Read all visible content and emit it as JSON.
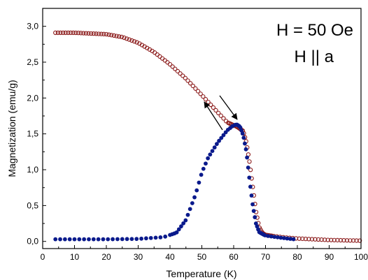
{
  "chart_data": {
    "type": "scatter",
    "xlabel": "Temperature (K)",
    "ylabel": "Magnetization (emu/g)",
    "xlim": [
      0,
      100
    ],
    "ylim": [
      -0.1,
      3.25
    ],
    "x_ticks": [
      0,
      10,
      20,
      30,
      40,
      50,
      60,
      70,
      80,
      90,
      100
    ],
    "x_tick_labels": [
      "0",
      "10",
      "20",
      "30",
      "40",
      "50",
      "60",
      "70",
      "80",
      "90",
      "100"
    ],
    "y_ticks": [
      0,
      0.5,
      1.0,
      1.5,
      2.0,
      2.5,
      3.0
    ],
    "y_tick_labels": [
      "0,0",
      "0,5",
      "1,0",
      "1,5",
      "2,0",
      "2,5",
      "3,0"
    ],
    "grid": false,
    "annotations": [
      "H = 50 Oe",
      "H || a"
    ],
    "colors": {
      "open_series": "#8B1A1A",
      "filled_series": "#0A1A8C"
    },
    "series": [
      {
        "marker": "open-circle",
        "color": "#8B1A1A",
        "anchors": [
          [
            4,
            2.91
          ],
          [
            10,
            2.91
          ],
          [
            15,
            2.9
          ],
          [
            20,
            2.89
          ],
          [
            25,
            2.85
          ],
          [
            30,
            2.77
          ],
          [
            35,
            2.64
          ],
          [
            40,
            2.47
          ],
          [
            45,
            2.27
          ],
          [
            50,
            2.04
          ],
          [
            55,
            1.8
          ],
          [
            58,
            1.66
          ],
          [
            61,
            1.6
          ],
          [
            63,
            1.54
          ],
          [
            64,
            1.38
          ],
          [
            65,
            1.1
          ],
          [
            66,
            0.76
          ],
          [
            67,
            0.42
          ],
          [
            68,
            0.2
          ],
          [
            69,
            0.12
          ],
          [
            70,
            0.09
          ],
          [
            75,
            0.06
          ],
          [
            80,
            0.04
          ],
          [
            90,
            0.02
          ],
          [
            100,
            0.01
          ]
        ]
      },
      {
        "marker": "filled-circle",
        "color": "#0A1A8C",
        "anchors": [
          [
            4,
            0.03
          ],
          [
            20,
            0.03
          ],
          [
            30,
            0.035
          ],
          [
            38,
            0.06
          ],
          [
            42,
            0.12
          ],
          [
            45,
            0.3
          ],
          [
            48,
            0.65
          ],
          [
            50,
            0.96
          ],
          [
            52,
            1.17
          ],
          [
            55,
            1.38
          ],
          [
            58,
            1.55
          ],
          [
            60,
            1.62
          ],
          [
            61,
            1.63
          ],
          [
            62,
            1.6
          ],
          [
            63,
            1.48
          ],
          [
            64,
            1.25
          ],
          [
            65,
            0.85
          ],
          [
            66,
            0.5
          ],
          [
            67,
            0.25
          ],
          [
            68,
            0.13
          ],
          [
            70,
            0.08
          ],
          [
            75,
            0.05
          ],
          [
            79,
            0.03
          ]
        ]
      }
    ]
  }
}
